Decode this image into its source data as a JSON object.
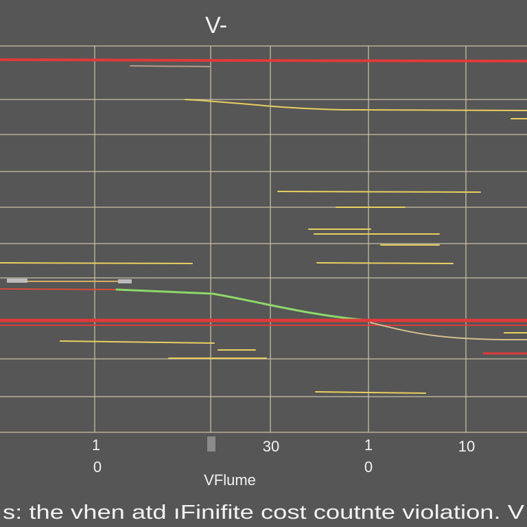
{
  "title": "V-",
  "tick_labels": [
    "1",
    "0",
    "30",
    "1",
    "0",
    "10"
  ],
  "axis_label": "VFlume",
  "caption": "s: the vhen atd ıFinifite cost coutnte violation. V"
}
